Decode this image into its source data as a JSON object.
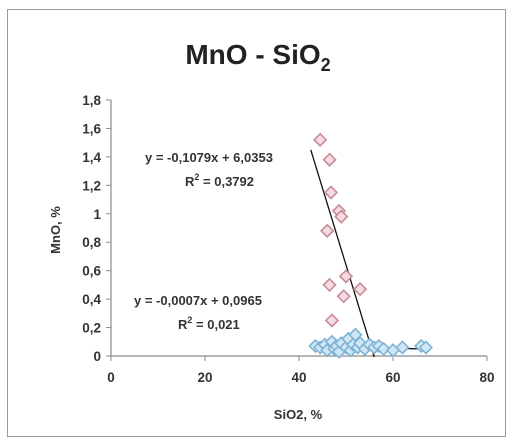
{
  "chart_data": {
    "type": "scatter",
    "title": {
      "main": "MnO - SiO",
      "subscript": "2"
    },
    "xlabel": "SiO2, %",
    "ylabel": "MnO, %",
    "xlim": [
      0,
      80
    ],
    "ylim": [
      0,
      1.8
    ],
    "x_ticks": [
      "0",
      "20",
      "40",
      "60",
      "80"
    ],
    "y_ticks": [
      "0",
      "0,2",
      "0,4",
      "0,6",
      "0,8",
      "1",
      "1,2",
      "1,4",
      "1,6",
      "1,8"
    ],
    "x_tick_values": [
      0,
      20,
      40,
      60,
      80
    ],
    "y_tick_values": [
      0,
      0.2,
      0.4,
      0.6,
      0.8,
      1.0,
      1.2,
      1.4,
      1.6,
      1.8
    ],
    "grid": false,
    "legend": "none",
    "series": [
      {
        "marker": "diamond",
        "color": "#c98a96",
        "fill": "#f3dde2",
        "points": [
          {
            "x": 44.5,
            "y": 1.52
          },
          {
            "x": 46.5,
            "y": 1.38
          },
          {
            "x": 46.8,
            "y": 1.15
          },
          {
            "x": 48.5,
            "y": 1.02
          },
          {
            "x": 49.0,
            "y": 0.98
          },
          {
            "x": 46.0,
            "y": 0.88
          },
          {
            "x": 50.0,
            "y": 0.56
          },
          {
            "x": 46.5,
            "y": 0.5
          },
          {
            "x": 53.0,
            "y": 0.47
          },
          {
            "x": 49.5,
            "y": 0.42
          },
          {
            "x": 47.0,
            "y": 0.25
          }
        ],
        "trendline": {
          "equation": "y = -0,1079x + 6,0353",
          "r2_label": "R",
          "r2_sup": "2",
          "r2_value": " = 0,3792",
          "slope": -0.1079,
          "intercept": 6.0353,
          "x_range": [
            42.5,
            56.0
          ]
        }
      },
      {
        "marker": "diamond",
        "color": "#7fb3d5",
        "fill": "#cfe6f6",
        "points": [
          {
            "x": 43.5,
            "y": 0.07
          },
          {
            "x": 44.5,
            "y": 0.06
          },
          {
            "x": 45.5,
            "y": 0.08
          },
          {
            "x": 46.0,
            "y": 0.04
          },
          {
            "x": 47.0,
            "y": 0.1
          },
          {
            "x": 47.5,
            "y": 0.05
          },
          {
            "x": 48.0,
            "y": 0.07
          },
          {
            "x": 48.5,
            "y": 0.03
          },
          {
            "x": 49.0,
            "y": 0.09
          },
          {
            "x": 50.0,
            "y": 0.06
          },
          {
            "x": 50.5,
            "y": 0.12
          },
          {
            "x": 51.0,
            "y": 0.04
          },
          {
            "x": 51.5,
            "y": 0.08
          },
          {
            "x": 52.0,
            "y": 0.15
          },
          {
            "x": 52.5,
            "y": 0.06
          },
          {
            "x": 53.0,
            "y": 0.09
          },
          {
            "x": 54.0,
            "y": 0.05
          },
          {
            "x": 55.0,
            "y": 0.08
          },
          {
            "x": 56.0,
            "y": 0.06
          },
          {
            "x": 57.0,
            "y": 0.07
          },
          {
            "x": 58.0,
            "y": 0.05
          },
          {
            "x": 60.0,
            "y": 0.04
          },
          {
            "x": 62.0,
            "y": 0.06
          },
          {
            "x": 66.0,
            "y": 0.07
          },
          {
            "x": 67.0,
            "y": 0.06
          }
        ],
        "trendline": {
          "equation": "y = -0,0007x + 0,0965",
          "r2_label": "R",
          "r2_sup": "2",
          "r2_value": " = 0,021",
          "slope": -0.0007,
          "intercept": 0.0965,
          "x_range": [
            43.0,
            68.0
          ]
        }
      }
    ]
  }
}
